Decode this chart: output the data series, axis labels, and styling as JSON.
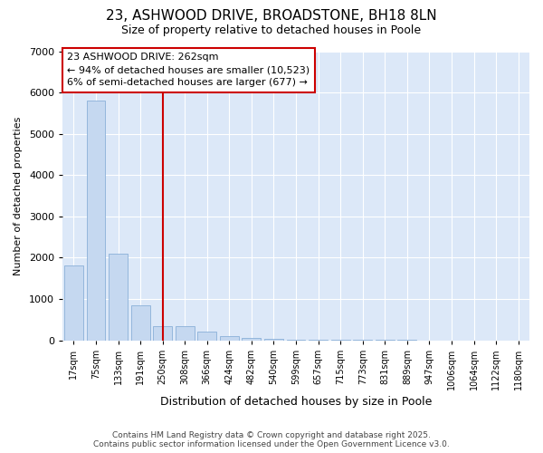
{
  "title1": "23, ASHWOOD DRIVE, BROADSTONE, BH18 8LN",
  "title2": "Size of property relative to detached houses in Poole",
  "xlabel": "Distribution of detached houses by size in Poole",
  "ylabel": "Number of detached properties",
  "categories": [
    "17sqm",
    "75sqm",
    "133sqm",
    "191sqm",
    "250sqm",
    "308sqm",
    "366sqm",
    "424sqm",
    "482sqm",
    "540sqm",
    "599sqm",
    "657sqm",
    "715sqm",
    "773sqm",
    "831sqm",
    "889sqm",
    "947sqm",
    "1006sqm",
    "1064sqm",
    "1122sqm",
    "1180sqm"
  ],
  "values": [
    1800,
    5800,
    2100,
    850,
    350,
    350,
    220,
    100,
    55,
    35,
    15,
    10,
    8,
    3,
    2,
    1,
    0,
    0,
    0,
    0,
    0
  ],
  "bar_color": "#c5d8f0",
  "bar_edge_color": "#8ab0d8",
  "red_line_index": 4,
  "annotation_line1": "23 ASHWOOD DRIVE: 262sqm",
  "annotation_line2": "← 94% of detached houses are smaller (10,523)",
  "annotation_line3": "6% of semi-detached houses are larger (677) →",
  "annotation_box_facecolor": "#ffffff",
  "annotation_box_edgecolor": "#cc0000",
  "ylim": [
    0,
    7000
  ],
  "yticks": [
    0,
    1000,
    2000,
    3000,
    4000,
    5000,
    6000,
    7000
  ],
  "plot_bg_color": "#dce8f8",
  "fig_bg_color": "#ffffff",
  "grid_color": "#ffffff",
  "footer1": "Contains HM Land Registry data © Crown copyright and database right 2025.",
  "footer2": "Contains public sector information licensed under the Open Government Licence v3.0."
}
